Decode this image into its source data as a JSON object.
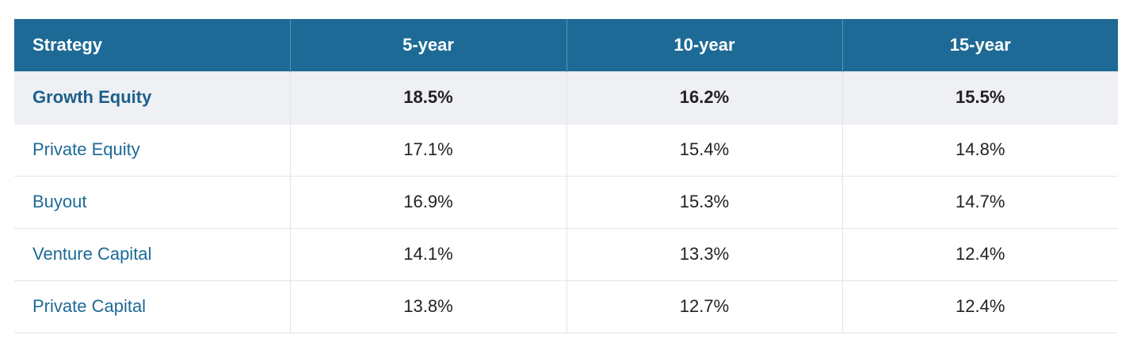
{
  "table": {
    "columns": [
      "Strategy",
      "5-year",
      "10-year",
      "15-year"
    ],
    "rows": [
      [
        "Growth Equity",
        "18.5%",
        "16.2%",
        "15.5%"
      ],
      [
        "Private Equity",
        "17.1%",
        "15.4%",
        "14.8%"
      ],
      [
        "Buyout",
        "16.9%",
        "15.3%",
        "14.7%"
      ],
      [
        "Venture Capital",
        "14.1%",
        "13.3%",
        "12.4%"
      ],
      [
        "Private Capital",
        "13.8%",
        "12.7%",
        "12.4%"
      ]
    ]
  }
}
